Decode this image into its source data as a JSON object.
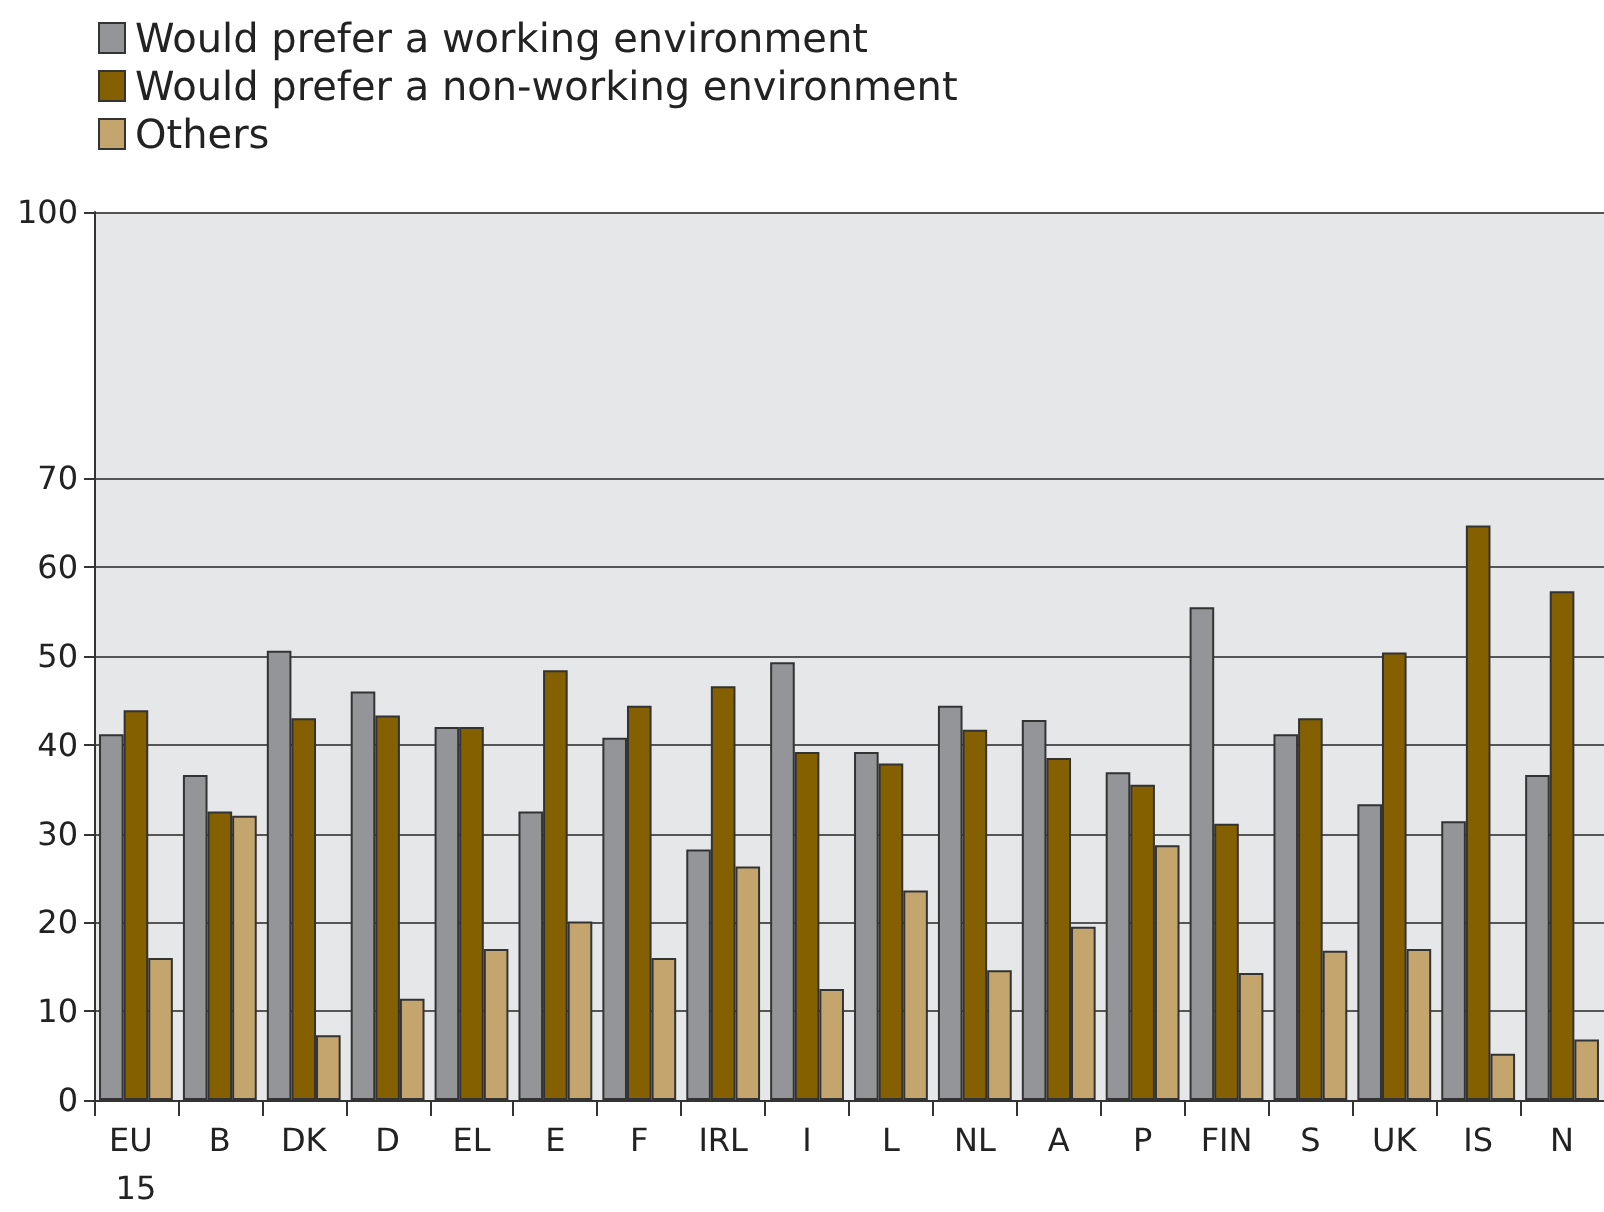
{
  "chart_data": {
    "type": "bar",
    "categories": [
      "EU 15",
      "B",
      "DK",
      "D",
      "EL",
      "E",
      "F",
      "IRL",
      "I",
      "L",
      "NL",
      "A",
      "P",
      "FIN",
      "S",
      "UK",
      "IS",
      "N"
    ],
    "series": [
      {
        "name": "Would prefer a working environment",
        "color": "#939598",
        "values": [
          41.2,
          36.6,
          50.6,
          46.0,
          42.0,
          32.5,
          40.8,
          28.2,
          49.3,
          39.2,
          44.4,
          42.8,
          36.9,
          55.5,
          41.2,
          33.3,
          31.4,
          36.6
        ]
      },
      {
        "name": "Would prefer a non-working environment",
        "color": "#856000",
        "values": [
          43.9,
          32.5,
          43.0,
          43.3,
          42.0,
          48.4,
          44.4,
          46.6,
          39.2,
          37.9,
          41.7,
          38.5,
          35.5,
          31.1,
          43.0,
          50.4,
          64.7,
          57.3
        ]
      },
      {
        "name": "Others",
        "color": "#c4a56e",
        "values": [
          16.0,
          32.0,
          7.3,
          11.4,
          17.0,
          20.1,
          16.0,
          26.3,
          12.5,
          23.6,
          14.6,
          19.5,
          28.7,
          14.3,
          16.8,
          17.0,
          5.2,
          6.8
        ]
      }
    ],
    "ylim": [
      0,
      100
    ],
    "yticks": [
      0,
      10,
      20,
      30,
      40,
      50,
      60,
      70,
      100
    ],
    "grid": "y",
    "legend": "top left"
  }
}
